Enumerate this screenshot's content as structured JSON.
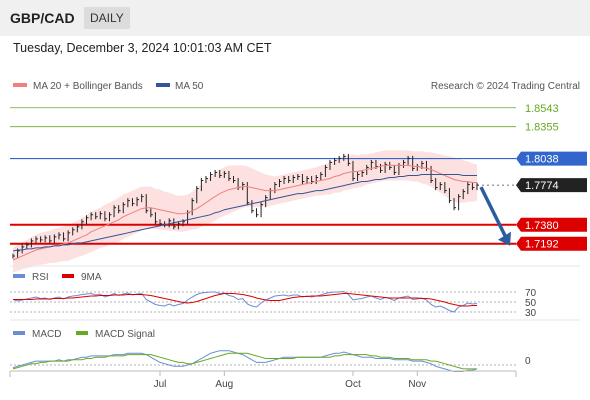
{
  "header": {
    "pair": "GBP/CAD",
    "period": "DAILY",
    "datetime": "Tuesday, December 3, 2024 10:01:03 AM CET"
  },
  "legend": {
    "ma20": "MA 20 + Bollinger Bands",
    "ma50": "MA 50",
    "credit": "Research © 2024 Trading Central"
  },
  "levels": [
    {
      "label": "1.8543",
      "value": 1.8543,
      "kind": "resistance"
    },
    {
      "label": "1.8355",
      "value": 1.8355,
      "kind": "resistance"
    },
    {
      "label": "1.8038",
      "value": 1.8038,
      "kind": "pivot"
    },
    {
      "label": "1.7774",
      "value": 1.7774,
      "kind": "last"
    },
    {
      "label": "1.7380",
      "value": 1.738,
      "kind": "support"
    },
    {
      "label": "1.7192",
      "value": 1.7192,
      "kind": "support"
    }
  ],
  "rsi": {
    "label": "RSI",
    "ma_label": "9MA",
    "ticks": [
      "70",
      "50",
      "30"
    ]
  },
  "macd": {
    "label": "MACD",
    "signal_label": "MACD Signal",
    "zero_label": "0"
  },
  "xaxis": {
    "months": [
      "Jul",
      "Aug",
      "Oct",
      "Nov"
    ]
  },
  "colors": {
    "pivot": "#3366cc",
    "support": "#dd0000",
    "resistance": "#66aa22",
    "ma20": "#f08080",
    "ma50": "#335599",
    "band": "#fde0e0",
    "last": "#222222",
    "arrow": "#2a5d9f"
  },
  "chart_data": {
    "type": "line",
    "title": "GBP/CAD",
    "ylim": [
      1.705,
      1.866
    ],
    "close": [
      1.707,
      1.712,
      1.716,
      1.718,
      1.722,
      1.724,
      1.723,
      1.725,
      1.722,
      1.726,
      1.728,
      1.724,
      1.73,
      1.733,
      1.736,
      1.741,
      1.745,
      1.748,
      1.746,
      1.749,
      1.744,
      1.748,
      1.755,
      1.752,
      1.758,
      1.762,
      1.759,
      1.763,
      1.766,
      1.752,
      1.748,
      1.741,
      1.739,
      1.738,
      1.742,
      1.736,
      1.739,
      1.741,
      1.75,
      1.762,
      1.774,
      1.782,
      1.784,
      1.788,
      1.79,
      1.787,
      1.789,
      1.784,
      1.782,
      1.775,
      1.778,
      1.76,
      1.752,
      1.748,
      1.758,
      1.765,
      1.772,
      1.778,
      1.781,
      1.784,
      1.782,
      1.785,
      1.786,
      1.781,
      1.784,
      1.781,
      1.785,
      1.788,
      1.795,
      1.8,
      1.802,
      1.804,
      1.806,
      1.799,
      1.784,
      1.788,
      1.79,
      1.795,
      1.8,
      1.796,
      1.792,
      1.798,
      1.795,
      1.79,
      1.797,
      1.8,
      1.804,
      1.794,
      1.796,
      1.799,
      1.794,
      1.782,
      1.775,
      1.778,
      1.772,
      1.762,
      1.755,
      1.766,
      1.771,
      1.778,
      1.775,
      1.7774
    ],
    "ma20": [
      1.703,
      1.705,
      1.707,
      1.709,
      1.711,
      1.713,
      1.714,
      1.715,
      1.716,
      1.717,
      1.718,
      1.719,
      1.72,
      1.722,
      1.724,
      1.726,
      1.728,
      1.731,
      1.733,
      1.735,
      1.737,
      1.739,
      1.741,
      1.743,
      1.746,
      1.748,
      1.75,
      1.752,
      1.754,
      1.755,
      1.755,
      1.754,
      1.753,
      1.752,
      1.751,
      1.75,
      1.749,
      1.749,
      1.75,
      1.752,
      1.754,
      1.757,
      1.76,
      1.763,
      1.766,
      1.769,
      1.771,
      1.773,
      1.774,
      1.775,
      1.776,
      1.776,
      1.775,
      1.774,
      1.773,
      1.772,
      1.772,
      1.772,
      1.773,
      1.774,
      1.775,
      1.776,
      1.777,
      1.778,
      1.779,
      1.78,
      1.781,
      1.782,
      1.783,
      1.784,
      1.786,
      1.787,
      1.789,
      1.79,
      1.791,
      1.791,
      1.792,
      1.793,
      1.794,
      1.795,
      1.796,
      1.797,
      1.797,
      1.797,
      1.797,
      1.797,
      1.797,
      1.796,
      1.796,
      1.795,
      1.794,
      1.793,
      1.791,
      1.789,
      1.787,
      1.785,
      1.783,
      1.782,
      1.781,
      1.781,
      1.78,
      1.78
    ],
    "ma50": [
      1.712,
      1.713,
      1.713,
      1.714,
      1.714,
      1.715,
      1.715,
      1.716,
      1.716,
      1.717,
      1.717,
      1.718,
      1.718,
      1.719,
      1.72,
      1.72,
      1.721,
      1.722,
      1.723,
      1.724,
      1.725,
      1.726,
      1.727,
      1.728,
      1.729,
      1.73,
      1.731,
      1.732,
      1.733,
      1.734,
      1.735,
      1.736,
      1.737,
      1.738,
      1.739,
      1.74,
      1.741,
      1.742,
      1.743,
      1.744,
      1.745,
      1.746,
      1.747,
      1.748,
      1.75,
      1.751,
      1.753,
      1.754,
      1.755,
      1.756,
      1.757,
      1.758,
      1.759,
      1.76,
      1.761,
      1.762,
      1.763,
      1.764,
      1.765,
      1.766,
      1.767,
      1.768,
      1.769,
      1.769,
      1.77,
      1.771,
      1.772,
      1.772,
      1.773,
      1.774,
      1.775,
      1.776,
      1.777,
      1.778,
      1.779,
      1.78,
      1.781,
      1.781,
      1.782,
      1.783,
      1.783,
      1.784,
      1.785,
      1.785,
      1.786,
      1.786,
      1.787,
      1.787,
      1.787,
      1.788,
      1.788,
      1.788,
      1.788,
      1.788,
      1.788,
      1.788,
      1.788,
      1.788,
      1.787,
      1.787,
      1.787,
      1.787
    ],
    "band_width": [
      0.012,
      0.013,
      0.013,
      0.014,
      0.015,
      0.015,
      0.016,
      0.016,
      0.016,
      0.017,
      0.017,
      0.017,
      0.018,
      0.018,
      0.018,
      0.019,
      0.019,
      0.02,
      0.02,
      0.02,
      0.021,
      0.021,
      0.021,
      0.022,
      0.022,
      0.022,
      0.022,
      0.022,
      0.022,
      0.021,
      0.021,
      0.02,
      0.02,
      0.019,
      0.019,
      0.018,
      0.018,
      0.018,
      0.018,
      0.019,
      0.02,
      0.021,
      0.022,
      0.023,
      0.024,
      0.024,
      0.024,
      0.024,
      0.023,
      0.022,
      0.021,
      0.02,
      0.019,
      0.018,
      0.017,
      0.016,
      0.015,
      0.014,
      0.014,
      0.014,
      0.014,
      0.014,
      0.014,
      0.014,
      0.014,
      0.014,
      0.014,
      0.015,
      0.015,
      0.016,
      0.016,
      0.017,
      0.017,
      0.017,
      0.017,
      0.016,
      0.016,
      0.015,
      0.015,
      0.015,
      0.015,
      0.015,
      0.015,
      0.015,
      0.015,
      0.015,
      0.015,
      0.015,
      0.015,
      0.016,
      0.016,
      0.017,
      0.018,
      0.019,
      0.02,
      0.021,
      0.022,
      0.022,
      0.021,
      0.02,
      0.019,
      0.018
    ],
    "rsi": [
      55,
      52,
      54,
      56,
      58,
      60,
      57,
      58,
      55,
      58,
      60,
      56,
      60,
      62,
      63,
      65,
      66,
      67,
      64,
      66,
      60,
      63,
      67,
      63,
      66,
      68,
      64,
      66,
      67,
      55,
      50,
      45,
      43,
      42,
      46,
      42,
      45,
      47,
      54,
      60,
      65,
      68,
      69,
      70,
      70,
      67,
      68,
      63,
      61,
      55,
      57,
      46,
      42,
      40,
      48,
      54,
      58,
      62,
      63,
      64,
      62,
      64,
      64,
      60,
      62,
      60,
      62,
      64,
      67,
      69,
      70,
      70,
      71,
      65,
      54,
      56,
      57,
      60,
      62,
      58,
      55,
      59,
      57,
      53,
      58,
      60,
      62,
      55,
      56,
      58,
      54,
      45,
      40,
      42,
      38,
      33,
      30,
      40,
      43,
      48,
      46,
      47
    ],
    "rsi_ma": [
      55,
      55,
      55,
      55,
      55,
      56,
      56,
      56,
      56,
      57,
      57,
      57,
      58,
      58,
      59,
      60,
      61,
      62,
      62,
      63,
      63,
      63,
      64,
      64,
      64,
      65,
      65,
      65,
      65,
      64,
      63,
      61,
      59,
      57,
      55,
      53,
      51,
      49,
      48,
      49,
      51,
      54,
      57,
      60,
      63,
      65,
      67,
      67,
      67,
      66,
      65,
      63,
      61,
      58,
      56,
      54,
      53,
      53,
      53,
      55,
      57,
      59,
      60,
      61,
      61,
      62,
      62,
      62,
      63,
      64,
      65,
      66,
      67,
      67,
      66,
      65,
      64,
      63,
      62,
      61,
      60,
      59,
      58,
      58,
      58,
      58,
      58,
      58,
      58,
      57,
      57,
      56,
      54,
      52,
      50,
      47,
      45,
      43,
      42,
      42,
      43,
      43
    ],
    "macd": [
      -0.002,
      -0.001,
      0,
      0.001,
      0.002,
      0.003,
      0.003,
      0.003,
      0.003,
      0.003,
      0.004,
      0.003,
      0.004,
      0.004,
      0.005,
      0.006,
      0.006,
      0.007,
      0.007,
      0.007,
      0.007,
      0.007,
      0.008,
      0.008,
      0.008,
      0.009,
      0.009,
      0.009,
      0.009,
      0.008,
      0.006,
      0.004,
      0.002,
      0.001,
      0,
      -0.001,
      -0.001,
      -0.001,
      0,
      0.001,
      0.003,
      0.005,
      0.007,
      0.009,
      0.01,
      0.011,
      0.011,
      0.011,
      0.01,
      0.009,
      0.008,
      0.006,
      0.004,
      0.002,
      0.002,
      0.002,
      0.003,
      0.004,
      0.005,
      0.006,
      0.006,
      0.006,
      0.006,
      0.006,
      0.006,
      0.006,
      0.006,
      0.006,
      0.007,
      0.008,
      0.009,
      0.009,
      0.01,
      0.009,
      0.008,
      0.007,
      0.006,
      0.006,
      0.006,
      0.005,
      0.005,
      0.005,
      0.005,
      0.004,
      0.004,
      0.004,
      0.004,
      0.003,
      0.003,
      0.003,
      0.002,
      0.001,
      -0.001,
      -0.002,
      -0.003,
      -0.004,
      -0.005,
      -0.005,
      -0.005,
      -0.004,
      -0.004,
      -0.003
    ],
    "macd_signal": [
      -0.003,
      -0.002,
      -0.001,
      0,
      0.001,
      0.001,
      0.002,
      0.002,
      0.003,
      0.003,
      0.003,
      0.003,
      0.003,
      0.004,
      0.004,
      0.004,
      0.005,
      0.005,
      0.006,
      0.006,
      0.006,
      0.007,
      0.007,
      0.007,
      0.007,
      0.008,
      0.008,
      0.008,
      0.008,
      0.008,
      0.008,
      0.007,
      0.006,
      0.005,
      0.004,
      0.003,
      0.002,
      0.002,
      0.001,
      0.001,
      0.002,
      0.003,
      0.004,
      0.005,
      0.006,
      0.007,
      0.008,
      0.009,
      0.009,
      0.009,
      0.009,
      0.009,
      0.008,
      0.007,
      0.006,
      0.005,
      0.005,
      0.005,
      0.005,
      0.005,
      0.005,
      0.005,
      0.006,
      0.006,
      0.006,
      0.006,
      0.006,
      0.006,
      0.006,
      0.006,
      0.007,
      0.007,
      0.008,
      0.008,
      0.008,
      0.008,
      0.008,
      0.008,
      0.007,
      0.007,
      0.006,
      0.006,
      0.006,
      0.005,
      0.005,
      0.005,
      0.005,
      0.004,
      0.004,
      0.004,
      0.004,
      0.003,
      0.003,
      0.002,
      0.001,
      0,
      -0.001,
      -0.002,
      -0.003,
      -0.003,
      -0.003,
      -0.003
    ]
  }
}
